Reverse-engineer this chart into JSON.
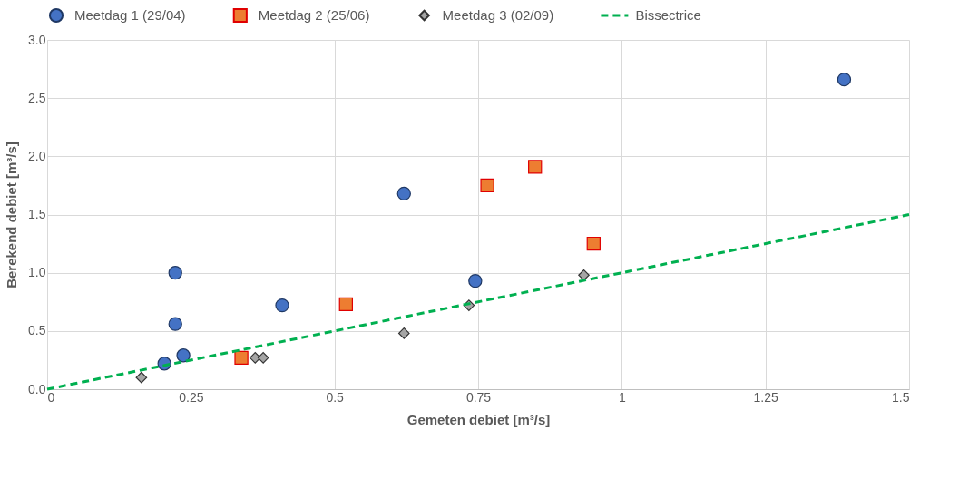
{
  "chart_data": {
    "type": "scatter",
    "xlabel": "Gemeten debiet [m³/s]",
    "ylabel": "Berekend debiet [m³/s]",
    "xlim": [
      0,
      1.5
    ],
    "ylim": [
      0,
      3
    ],
    "xticks": [
      0,
      0.25,
      0.5,
      0.75,
      1,
      1.25,
      1.5
    ],
    "yticks": [
      {
        "value": 0,
        "label": "0.0"
      },
      {
        "value": 0.5,
        "label": "0.5"
      },
      {
        "value": 1,
        "label": "1.0"
      },
      {
        "value": 1.5,
        "label": "1.5"
      },
      {
        "value": 2,
        "label": "2.0"
      },
      {
        "value": 2.5,
        "label": "2.5"
      },
      {
        "value": 3,
        "label": "3.0"
      }
    ],
    "grid": true,
    "legend": "top",
    "series": [
      {
        "name": "Meetdag 1 (29/04)",
        "color": "#4472c4",
        "marker": "circle",
        "x": [
          0.204,
          0.237,
          0.223,
          0.223,
          0.409,
          0.621,
          0.745,
          1.387
        ],
        "values": [
          0.22,
          0.29,
          0.56,
          1.0,
          0.72,
          1.68,
          0.93,
          2.66
        ]
      },
      {
        "name": "Meetdag 2 (25/06)",
        "color": "#ed7d31",
        "marker": "square",
        "x": [
          0.338,
          0.52,
          0.766,
          0.849,
          0.951
        ],
        "values": [
          0.27,
          0.73,
          1.75,
          1.91,
          1.25
        ]
      },
      {
        "name": "Meetdag 3 (02/09)",
        "color": "#a5a5a5",
        "marker": "diamond",
        "x": [
          0.164,
          0.362,
          0.376,
          0.621,
          0.734,
          0.934
        ],
        "values": [
          0.1,
          0.27,
          0.27,
          0.48,
          0.72,
          0.98
        ]
      },
      {
        "name": "Bissectrice",
        "type": "line",
        "color": "#00b050",
        "line_style": "dashed",
        "marker": "none",
        "x": [
          0,
          1.5
        ],
        "values": [
          0,
          1.5
        ]
      }
    ]
  }
}
